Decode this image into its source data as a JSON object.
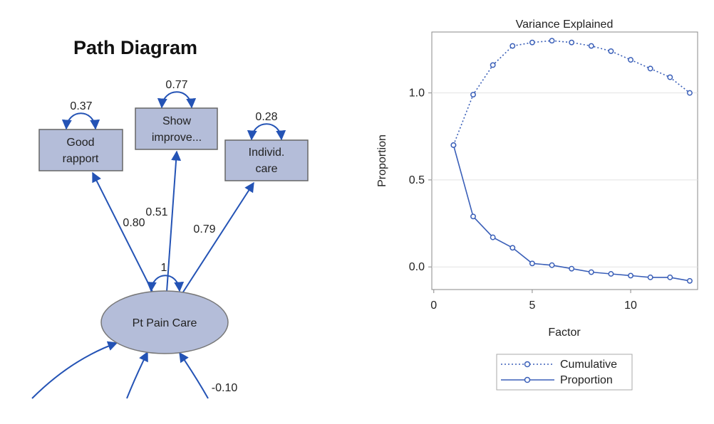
{
  "path_diagram": {
    "title": "Path Diagram",
    "factor": {
      "label": "Pt Pain Care",
      "variance": "1"
    },
    "indicators": [
      {
        "id": "good-rapport",
        "lines": [
          "Good",
          "rapport"
        ],
        "variance": "0.37",
        "loading": "0.80"
      },
      {
        "id": "show-improve",
        "lines": [
          "Show",
          "improve..."
        ],
        "variance": "0.77",
        "loading": "0.51"
      },
      {
        "id": "individ-care",
        "lines": [
          "Individ.",
          "care"
        ],
        "variance": "0.28",
        "loading": "0.79"
      }
    ],
    "lower_paths": [
      {
        "id": "path-right",
        "label": "-0.10"
      }
    ],
    "colors": {
      "box_fill": "#b4bdd9",
      "box_stroke": "#666666",
      "arrow": "#2453b5"
    }
  },
  "chart_data": {
    "type": "line",
    "title": "Variance Explained",
    "xlabel": "Factor",
    "ylabel": "Proportion",
    "xlim": [
      -0.1,
      13.4
    ],
    "ylim": [
      -0.13,
      1.35
    ],
    "xticks": [
      0,
      5,
      10
    ],
    "xtick_labels": [
      "0",
      "5",
      "10"
    ],
    "yticks": [
      0.0,
      0.5,
      1.0
    ],
    "ytick_labels": [
      "0.0",
      "0.5",
      "1.0"
    ],
    "grid": "horizontal",
    "legend_position": "bottom",
    "x": [
      1,
      2,
      3,
      4,
      5,
      6,
      7,
      8,
      9,
      10,
      11,
      12,
      13
    ],
    "series": [
      {
        "name": "Cumulative",
        "style": "dotted",
        "color": "#3a5fb8",
        "values": [
          0.7,
          0.99,
          1.16,
          1.27,
          1.29,
          1.3,
          1.29,
          1.27,
          1.24,
          1.19,
          1.14,
          1.09,
          1.0
        ]
      },
      {
        "name": "Proportion",
        "style": "solid",
        "color": "#3a5fb8",
        "values": [
          0.7,
          0.29,
          0.17,
          0.11,
          0.02,
          0.01,
          -0.01,
          -0.03,
          -0.04,
          -0.05,
          -0.06,
          -0.06,
          -0.08
        ]
      }
    ]
  }
}
